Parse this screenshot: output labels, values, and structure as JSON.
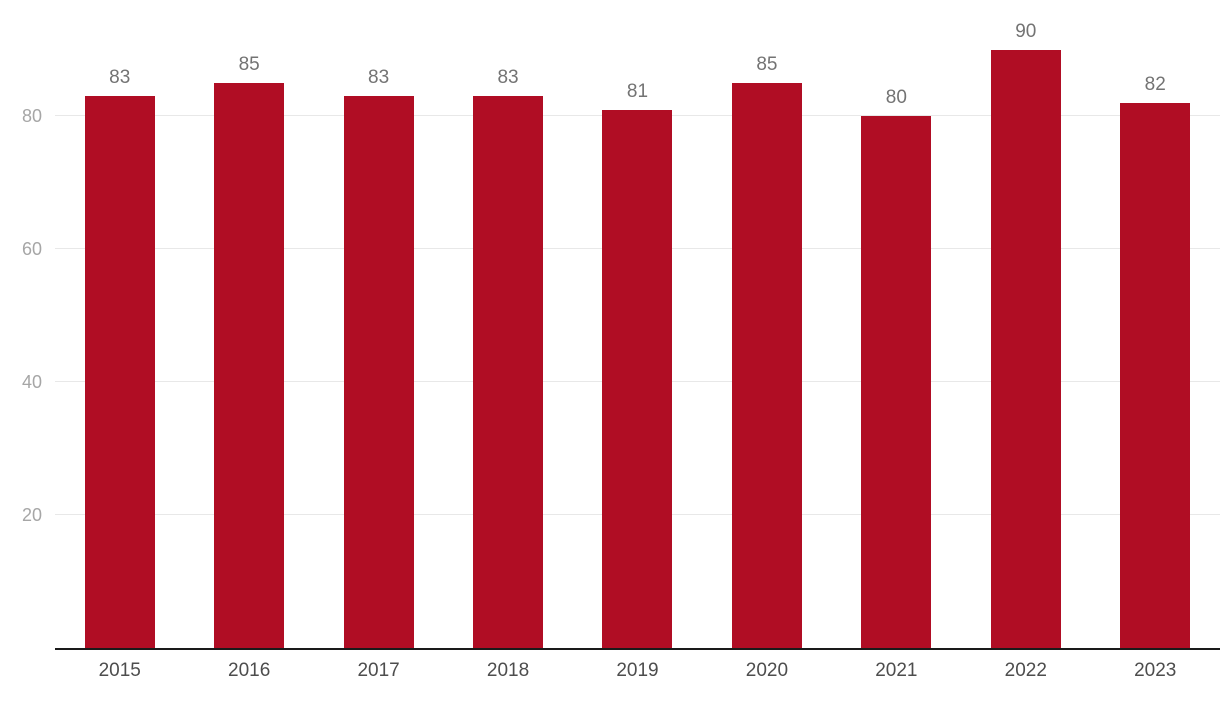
{
  "chart_data": {
    "type": "bar",
    "title": "",
    "xlabel": "",
    "ylabel": "",
    "categories": [
      "2015",
      "2016",
      "2017",
      "2018",
      "2019",
      "2020",
      "2021",
      "2022",
      "2023"
    ],
    "values": [
      83,
      85,
      83,
      83,
      81,
      85,
      80,
      90,
      82
    ],
    "ylim": [
      0,
      97.5
    ],
    "yticks": [
      20,
      40,
      60,
      80
    ],
    "grid": true,
    "legend": "none",
    "bar_color": "#b00d24",
    "value_label_color": "#737373",
    "ytick_color": "#a6a6a6",
    "xtick_color": "#4d4d4d",
    "gridline_color": "#e8e8e8",
    "axis_color": "#1a1a1a",
    "background_color": "#ffffff"
  }
}
